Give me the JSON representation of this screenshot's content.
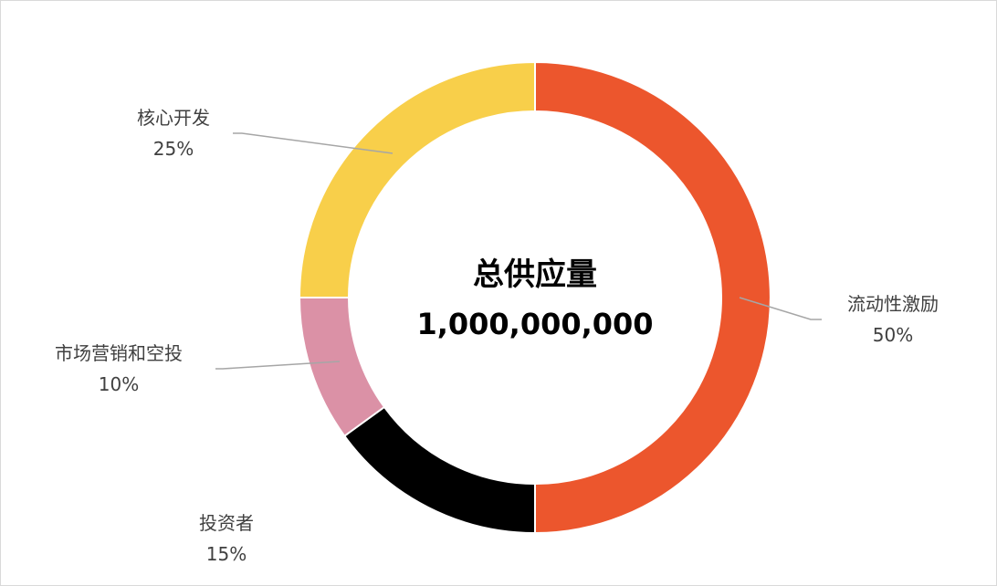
{
  "chart_data": {
    "type": "pie",
    "variant": "donut",
    "center": {
      "title": "总供应量",
      "value": "1,000,000,000"
    },
    "slices": [
      {
        "name": "流动性激励",
        "value": 50,
        "label": "50%",
        "color": "#EC562D"
      },
      {
        "name": "投资者",
        "value": 15,
        "label": "15%",
        "color": "#000000"
      },
      {
        "name": "市场营销和空投",
        "value": 10,
        "label": "10%",
        "color": "#DB91A6"
      },
      {
        "name": "核心开发",
        "value": 25,
        "label": "25%",
        "color": "#F8CF4A"
      }
    ],
    "leader_line_color": "#A6A6A6",
    "slice_border_color": "#FFFFFF"
  }
}
